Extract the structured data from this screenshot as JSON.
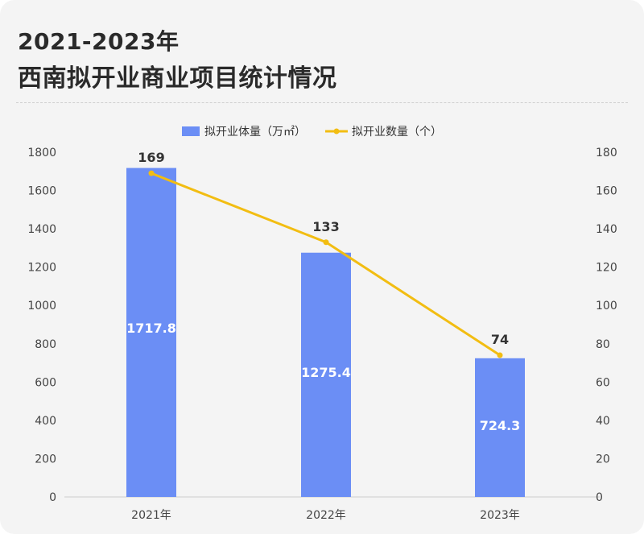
{
  "title_line1": "2021-2023年",
  "title_line2": "西南拟开业商业项目统计情况",
  "colors": {
    "bar": "#6b8ef5",
    "line": "#f2bd12",
    "background": "#f4f4f4"
  },
  "chart_data": {
    "type": "bar",
    "categories": [
      "2021年",
      "2022年",
      "2023年"
    ],
    "series": [
      {
        "name": "拟开业体量（万㎡）",
        "type": "bar",
        "axis": "left",
        "values": [
          1717.8,
          1275.4,
          724.3
        ],
        "labels": [
          "1717.8",
          "1275.4",
          "724.3"
        ]
      },
      {
        "name": "拟开业数量（个）",
        "type": "line",
        "axis": "right",
        "values": [
          169,
          133,
          74
        ],
        "labels": [
          "169",
          "133",
          "74"
        ]
      }
    ],
    "y_left": {
      "min": 0,
      "max": 1800,
      "ticks": [
        "0",
        "200",
        "400",
        "600",
        "800",
        "1000",
        "1200",
        "1400",
        "1600",
        "1800"
      ]
    },
    "y_right": {
      "min": 0,
      "max": 180,
      "ticks": [
        "0",
        "20",
        "40",
        "60",
        "80",
        "100",
        "120",
        "140",
        "160",
        "180"
      ]
    },
    "legend_position": "top-center",
    "grid": false
  }
}
